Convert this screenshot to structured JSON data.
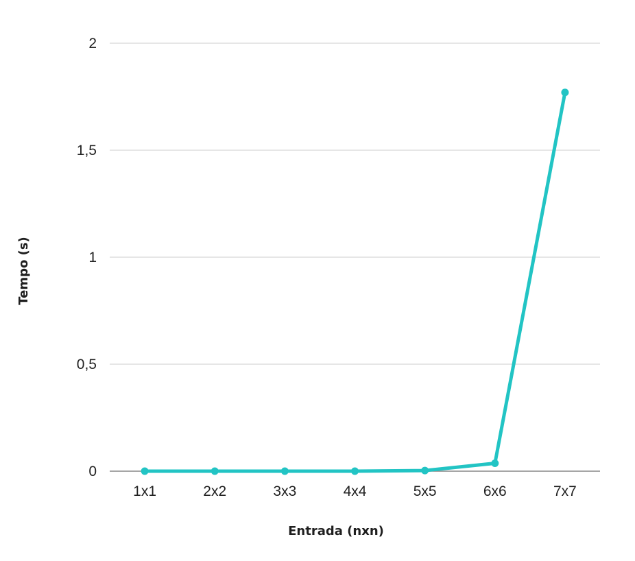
{
  "chart_data": {
    "type": "line",
    "title": "",
    "xlabel": "Entrada (nxn)",
    "ylabel": "Tempo (s)",
    "categories": [
      "1x1",
      "2x2",
      "3x3",
      "4x4",
      "5x5",
      "6x6",
      "7x7"
    ],
    "series": [
      {
        "values": [
          0,
          0,
          0,
          0,
          0.003,
          0.037,
          1.77
        ]
      }
    ],
    "ylim": [
      0,
      2
    ],
    "yticks": [
      0,
      0.5,
      1,
      1.5,
      2
    ],
    "ytick_labels": [
      "0",
      "0,5",
      "1",
      "1,5",
      "2"
    ],
    "grid": "horizontal",
    "legend": "none",
    "colors": {
      "line": "#22c4c4",
      "grid": "#cccccc",
      "baseline": "#888888"
    }
  }
}
